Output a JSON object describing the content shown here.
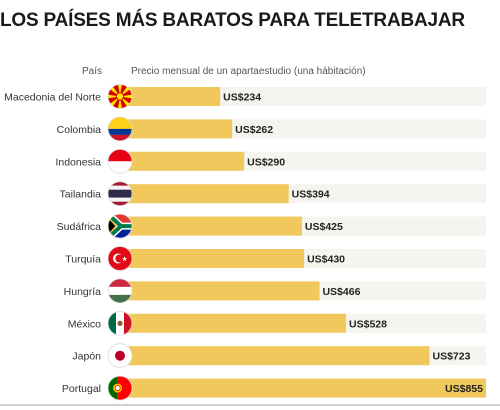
{
  "title": "LOS PAÍSES MÁS BARATOS PARA TELETRABAJAR",
  "colors": {
    "bar": "#f1c85b",
    "track": "#f6f4ee",
    "text": "#333333"
  },
  "chart_data": {
    "type": "bar",
    "orientation": "horizontal",
    "title": "LOS PAÍSES MÁS BARATOS PARA TELETRABAJAR",
    "category_header": "País",
    "value_header": "Precio mensual de un apartaestudio (una hábitación)",
    "value_prefix": "US$",
    "grid": false,
    "legend": "none",
    "xlim": [
      0,
      900
    ],
    "categories": [
      "Macedonia del Norte",
      "Colombia",
      "Indonesia",
      "Tailandia",
      "Sudáfrica",
      "Turquía",
      "Hungría",
      "México",
      "Japón",
      "Portugal"
    ],
    "values": [
      234,
      262,
      290,
      394,
      425,
      430,
      466,
      528,
      723,
      855
    ],
    "value_labels": [
      "US$234",
      "US$262",
      "US$290",
      "US$394",
      "US$425",
      "US$430",
      "US$466",
      "US$528",
      "US$723",
      "US$855"
    ],
    "flag_icons": [
      "macedonia-flag-icon",
      "colombia-flag-icon",
      "indonesia-flag-icon",
      "thailand-flag-icon",
      "south-africa-flag-icon",
      "turkey-flag-icon",
      "hungary-flag-icon",
      "mexico-flag-icon",
      "japan-flag-icon",
      "portugal-flag-icon"
    ]
  }
}
